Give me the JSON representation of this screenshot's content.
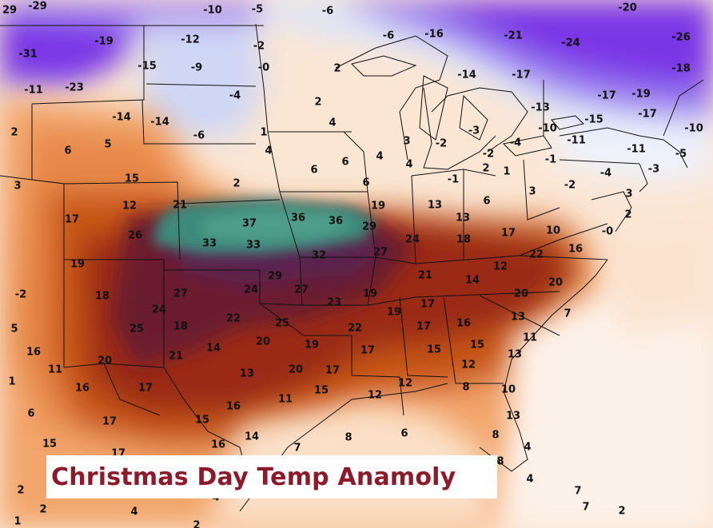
{
  "title": "Christmas Day Temp Anamoly",
  "title_color": "#8b1a2b",
  "palette": {
    "very_cold": "#7a2ee0",
    "cold": "#b39cf0",
    "cool": "#dfe6f8",
    "neutral": "#fbe3cf",
    "warm": "#f2a56a",
    "hot": "#c95718",
    "very_hot": "#8a2412",
    "extreme": "#5a2150",
    "max": "#3e8a7b"
  },
  "anomaly_values": [
    {
      "v": "29"
    },
    {
      "v": "-29"
    },
    {
      "v": "-10"
    },
    {
      "v": "-5"
    },
    {
      "v": "-6"
    },
    {
      "v": "-20"
    },
    {
      "v": "-19"
    },
    {
      "v": "-12"
    },
    {
      "v": "-2"
    },
    {
      "v": "-6"
    },
    {
      "v": "-16"
    },
    {
      "v": "-21"
    },
    {
      "v": "-24"
    },
    {
      "v": "-26"
    },
    {
      "v": "-31"
    },
    {
      "v": "-15"
    },
    {
      "v": "-9"
    },
    {
      "v": "-0"
    },
    {
      "v": "2"
    },
    {
      "v": "-18"
    },
    {
      "v": "-11"
    },
    {
      "v": "-23"
    },
    {
      "v": "-4"
    },
    {
      "v": "2"
    },
    {
      "v": "-14"
    },
    {
      "v": "-17"
    },
    {
      "v": "-17"
    },
    {
      "v": "-19"
    },
    {
      "v": "-14"
    },
    {
      "v": "-14"
    },
    {
      "v": "-13"
    },
    {
      "v": "2"
    },
    {
      "v": "-6"
    },
    {
      "v": "1"
    },
    {
      "v": "4"
    },
    {
      "v": "-15"
    },
    {
      "v": "-17"
    },
    {
      "v": "-10"
    },
    {
      "v": "-10"
    },
    {
      "v": "-11"
    },
    {
      "v": "3"
    },
    {
      "v": "-2"
    },
    {
      "v": "-3"
    },
    {
      "v": "-2"
    },
    {
      "v": "-4"
    },
    {
      "v": "-11"
    },
    {
      "v": "-5"
    },
    {
      "v": "2"
    },
    {
      "v": "6"
    },
    {
      "v": "5"
    },
    {
      "v": "4"
    },
    {
      "v": "4"
    },
    {
      "v": "4"
    },
    {
      "v": "1"
    },
    {
      "v": "-1"
    },
    {
      "v": "-4"
    },
    {
      "v": "-3"
    },
    {
      "v": "3"
    },
    {
      "v": "15"
    },
    {
      "v": "6"
    },
    {
      "v": "6"
    },
    {
      "v": "2"
    },
    {
      "v": "6"
    },
    {
      "v": "-1"
    },
    {
      "v": "-2"
    },
    {
      "v": "3"
    },
    {
      "v": "17"
    },
    {
      "v": "12"
    },
    {
      "v": "21"
    },
    {
      "v": "19"
    },
    {
      "v": "13"
    },
    {
      "v": "6"
    },
    {
      "v": "3"
    },
    {
      "v": "2"
    },
    {
      "v": "26"
    },
    {
      "v": "37"
    },
    {
      "v": "36"
    },
    {
      "v": "36"
    },
    {
      "v": "29"
    },
    {
      "v": "13"
    },
    {
      "v": "17"
    },
    {
      "v": "10"
    },
    {
      "v": "33"
    },
    {
      "v": "33"
    },
    {
      "v": "24"
    },
    {
      "v": "18"
    },
    {
      "v": "-0"
    },
    {
      "v": "19"
    },
    {
      "v": "32"
    },
    {
      "v": "27"
    },
    {
      "v": "22"
    },
    {
      "v": "16"
    },
    {
      "v": "-2"
    },
    {
      "v": "18"
    },
    {
      "v": "27"
    },
    {
      "v": "29"
    },
    {
      "v": "21"
    },
    {
      "v": "14"
    },
    {
      "v": "12"
    },
    {
      "v": "20"
    },
    {
      "v": "24"
    },
    {
      "v": "24"
    },
    {
      "v": "27"
    },
    {
      "v": "22"
    },
    {
      "v": "23"
    },
    {
      "v": "19"
    },
    {
      "v": "20"
    },
    {
      "v": "5"
    },
    {
      "v": "25"
    },
    {
      "v": "18"
    },
    {
      "v": "25"
    },
    {
      "v": "22"
    },
    {
      "v": "19"
    },
    {
      "v": "17"
    },
    {
      "v": "17"
    },
    {
      "v": "16"
    },
    {
      "v": "13"
    },
    {
      "v": "7"
    },
    {
      "v": "16"
    },
    {
      "v": "21"
    },
    {
      "v": "14"
    },
    {
      "v": "20"
    },
    {
      "v": "19"
    },
    {
      "v": "17"
    },
    {
      "v": "15"
    },
    {
      "v": "15"
    },
    {
      "v": "11"
    },
    {
      "v": "13"
    },
    {
      "v": "11"
    },
    {
      "v": "20"
    },
    {
      "v": "12"
    },
    {
      "v": "1"
    },
    {
      "v": "16"
    },
    {
      "v": "17"
    },
    {
      "v": "13"
    },
    {
      "v": "20"
    },
    {
      "v": "17"
    },
    {
      "v": "12"
    },
    {
      "v": "10"
    },
    {
      "v": "6"
    },
    {
      "v": "17"
    },
    {
      "v": "15"
    },
    {
      "v": "16"
    },
    {
      "v": "11"
    },
    {
      "v": "15"
    },
    {
      "v": "12"
    },
    {
      "v": "8"
    },
    {
      "v": "13"
    },
    {
      "v": "15"
    },
    {
      "v": "17"
    },
    {
      "v": "16"
    },
    {
      "v": "14"
    },
    {
      "v": "7"
    },
    {
      "v": "8"
    },
    {
      "v": "6"
    },
    {
      "v": "8"
    },
    {
      "v": "4"
    },
    {
      "v": "8"
    },
    {
      "v": "4"
    },
    {
      "v": "2"
    },
    {
      "v": "2"
    },
    {
      "v": "4"
    },
    {
      "v": "7"
    },
    {
      "v": "7"
    },
    {
      "v": "2"
    },
    {
      "v": "2"
    },
    {
      "v": "4"
    },
    {
      "v": "1"
    }
  ]
}
